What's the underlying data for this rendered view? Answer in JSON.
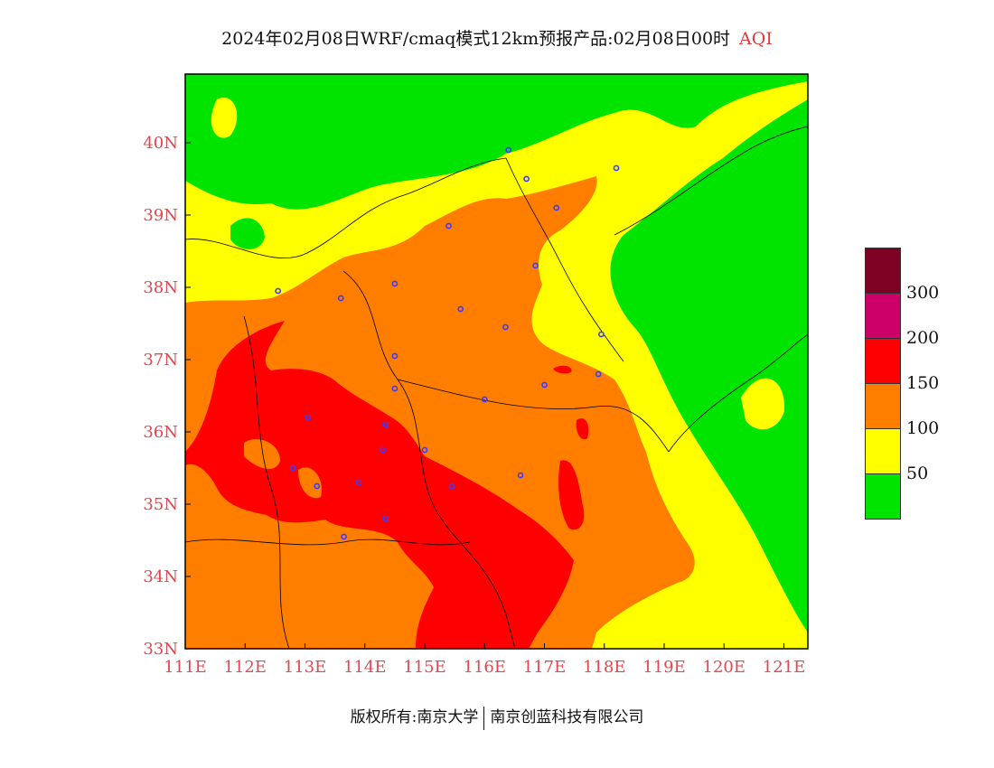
{
  "title": {
    "text": "2024年02月08日WRF/cmaq模式12km预报产品:02月08日00时",
    "tag": "AQI"
  },
  "chart_data": {
    "type": "heatmap",
    "xlabel": "",
    "ylabel": "",
    "x_ticks": [
      "111E",
      "112E",
      "113E",
      "114E",
      "115E",
      "116E",
      "117E",
      "118E",
      "119E",
      "120E",
      "121E"
    ],
    "y_ticks": [
      "33N",
      "34N",
      "35N",
      "36N",
      "37N",
      "38N",
      "39N",
      "40N"
    ],
    "xlim": [
      111,
      121.4
    ],
    "ylim": [
      33,
      40.95
    ],
    "legend": {
      "placement": "right",
      "levels": [
        "50",
        "100",
        "150",
        "200",
        "300"
      ],
      "colors": [
        "#00e400",
        "#ffff00",
        "#ff7e00",
        "#ff0000",
        "#cc0066",
        "#7e0023"
      ]
    },
    "stations": [
      [
        116.4,
        39.9
      ],
      [
        116.7,
        39.5
      ],
      [
        118.2,
        39.65
      ],
      [
        117.2,
        39.1
      ],
      [
        115.4,
        38.85
      ],
      [
        116.85,
        38.3
      ],
      [
        114.5,
        38.05
      ],
      [
        112.55,
        37.95
      ],
      [
        113.6,
        37.85
      ],
      [
        115.6,
        37.7
      ],
      [
        116.35,
        37.45
      ],
      [
        117.95,
        37.35
      ],
      [
        114.5,
        37.05
      ],
      [
        117.9,
        36.8
      ],
      [
        116.0,
        36.45
      ],
      [
        117.0,
        36.65
      ],
      [
        114.5,
        36.6
      ],
      [
        113.05,
        36.2
      ],
      [
        114.35,
        36.1
      ],
      [
        114.3,
        35.75
      ],
      [
        115.0,
        35.75
      ],
      [
        112.8,
        35.5
      ],
      [
        113.9,
        35.3
      ],
      [
        113.2,
        35.25
      ],
      [
        115.45,
        35.25
      ],
      [
        116.6,
        35.4
      ],
      [
        114.35,
        34.8
      ],
      [
        113.65,
        34.55
      ]
    ]
  },
  "footer": {
    "left": "版权所有:南京大学",
    "right": "南京创蓝科技有限公司"
  }
}
